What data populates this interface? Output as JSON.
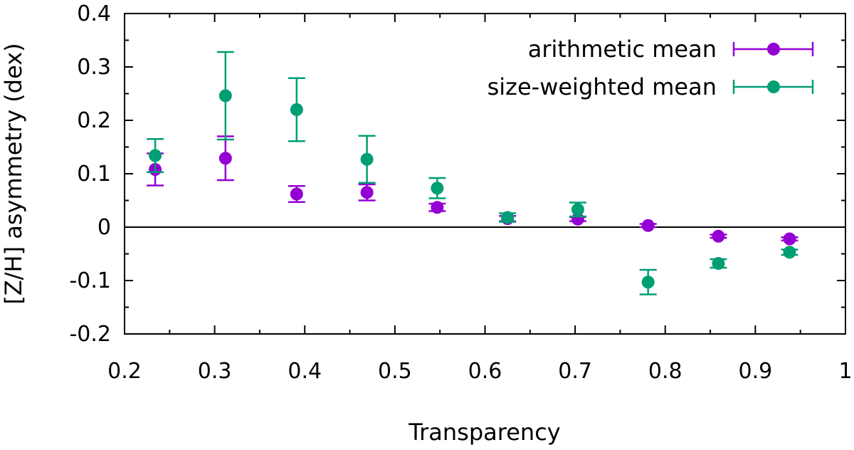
{
  "chart_data": {
    "type": "scatter",
    "title": "",
    "xlabel": "Transparency",
    "ylabel": "[Z/H] asymmetry (dex)",
    "xlim": [
      0.2,
      1.0
    ],
    "ylim": [
      -0.2,
      0.4
    ],
    "xticks": [
      0.2,
      0.3,
      0.4,
      0.5,
      0.6,
      0.7,
      0.8,
      0.9,
      1.0
    ],
    "xtick_labels": [
      "0.2",
      "0.3",
      "0.4",
      "0.5",
      "0.6",
      "0.7",
      "0.8",
      "0.9",
      "1"
    ],
    "yticks": [
      -0.2,
      -0.1,
      0,
      0.1,
      0.2,
      0.3,
      0.4
    ],
    "ytick_labels": [
      "-0.2",
      "-0.1",
      "0",
      "0.1",
      "0.2",
      "0.3",
      "0.4"
    ],
    "zero_line": true,
    "legend_position": "top-right",
    "series": [
      {
        "name": "arithmetic mean",
        "color": "#9400d3",
        "x": [
          0.234,
          0.312,
          0.391,
          0.469,
          0.547,
          0.625,
          0.703,
          0.781,
          0.859,
          0.938
        ],
        "y": [
          0.108,
          0.129,
          0.062,
          0.065,
          0.037,
          0.016,
          0.015,
          0.003,
          -0.017,
          -0.022
        ],
        "err": [
          0.03,
          0.041,
          0.015,
          0.015,
          0.007,
          0.005,
          0.004,
          0.003,
          0.003,
          0.003
        ]
      },
      {
        "name": "size-weighted mean",
        "color": "#009e73",
        "x": [
          0.234,
          0.312,
          0.391,
          0.469,
          0.547,
          0.625,
          0.703,
          0.781,
          0.859,
          0.938
        ],
        "y": [
          0.134,
          0.246,
          0.22,
          0.127,
          0.073,
          0.018,
          0.033,
          -0.103,
          -0.068,
          -0.047
        ],
        "err": [
          0.031,
          0.082,
          0.059,
          0.044,
          0.019,
          0.008,
          0.013,
          0.023,
          0.008,
          0.005
        ]
      }
    ]
  }
}
